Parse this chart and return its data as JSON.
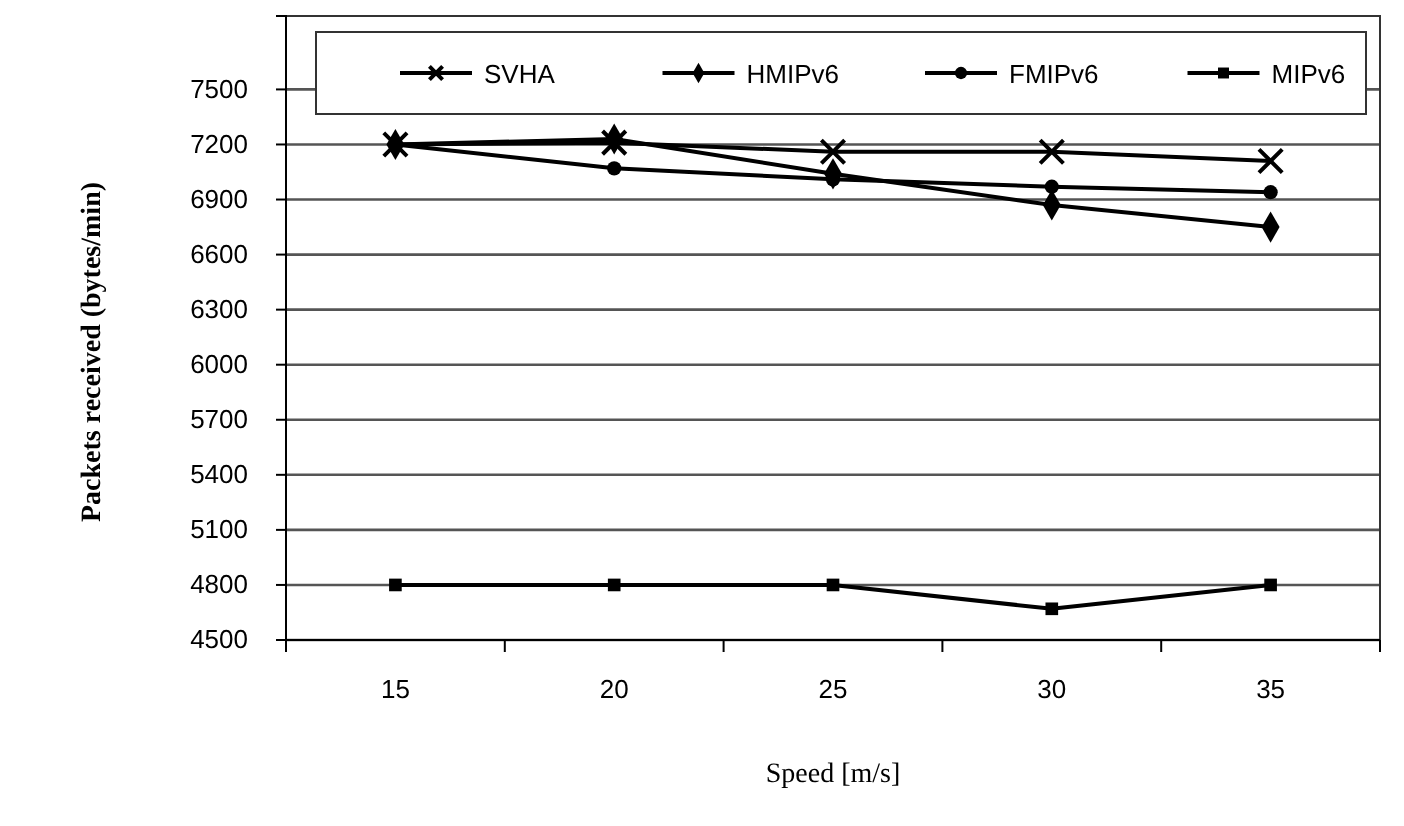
{
  "chart_data": {
    "type": "line",
    "xlabel": "Speed [m/s]",
    "ylabel": "Packets received (bytes/min)",
    "categories": [
      "15",
      "20",
      "25",
      "30",
      "35"
    ],
    "series": [
      {
        "name": "SVHA",
        "color": "#000000",
        "marker": "cross",
        "values": [
          7200,
          7210,
          7160,
          7160,
          7110
        ]
      },
      {
        "name": "HMIPv6",
        "color": "#000000",
        "marker": "diamond",
        "values": [
          7200,
          7230,
          7040,
          6870,
          6750
        ]
      },
      {
        "name": "FMIPv6",
        "color": "#000000",
        "marker": "circle",
        "values": [
          7200,
          7070,
          7010,
          6970,
          6940
        ]
      },
      {
        "name": "MIPv6",
        "color": "#000000",
        "marker": "square",
        "values": [
          4800,
          4800,
          4800,
          4670,
          4800
        ]
      }
    ],
    "ylim": [
      4500,
      7900
    ],
    "yticks": [
      4500,
      4800,
      5100,
      5400,
      5700,
      6000,
      6300,
      6600,
      6900,
      7200,
      7500
    ],
    "grid": "y",
    "legend": "top",
    "line_style": "solid"
  }
}
